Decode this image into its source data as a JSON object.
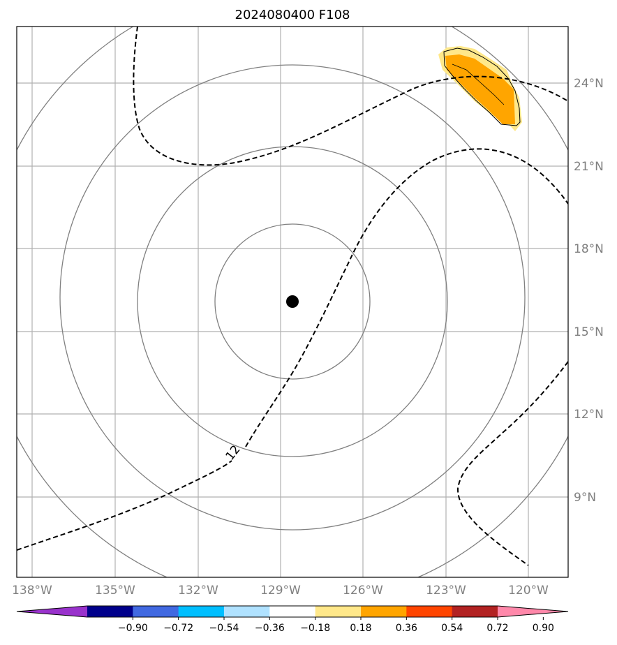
{
  "title": "2024080400 F108",
  "map": {
    "lon_ticks": [
      "138°W",
      "135°W",
      "132°W",
      "129°W",
      "126°W",
      "123°W",
      "120°W"
    ],
    "lat_ticks": [
      "24°N",
      "21°N",
      "18°N",
      "15°N",
      "12°N",
      "9°N"
    ],
    "grid": true,
    "center_marker": "storm-center-dot",
    "range_rings": 4,
    "contour_label": "12",
    "colors": {
      "frame": "#000000",
      "gridline": "#b0b0b0",
      "ring": "#808080",
      "contour": "#000000",
      "shade_light": "#ffe88a",
      "shade_dark": "#ffa500"
    }
  },
  "colorbar": {
    "ticks": [
      "−0.90",
      "−0.72",
      "−0.54",
      "−0.36",
      "−0.18",
      "0.18",
      "0.36",
      "0.54",
      "0.72",
      "0.90"
    ],
    "colors": [
      "#9932cc",
      "#00008b",
      "#4169e1",
      "#00bfff",
      "#b0e2ff",
      "#ffffff",
      "#ffe88a",
      "#ffa500",
      "#ff4500",
      "#b22222",
      "#ff88aa"
    ]
  }
}
